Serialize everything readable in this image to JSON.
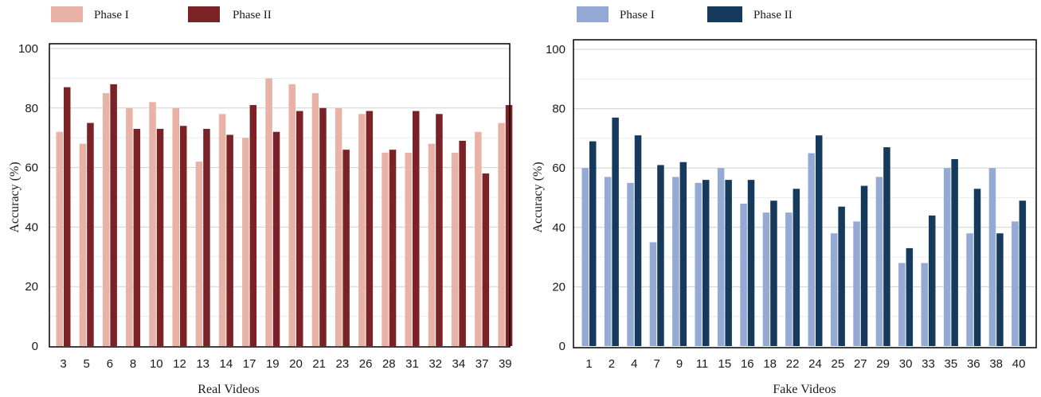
{
  "chart_data": [
    {
      "type": "bar",
      "title": "",
      "xlabel": "Real Videos",
      "ylabel": "Accuracy (%)",
      "ylim": [
        0,
        100
      ],
      "yticks": [
        0,
        20,
        40,
        60,
        80,
        100
      ],
      "grid": true,
      "legend_position": "top-left",
      "categories": [
        "3",
        "5",
        "6",
        "8",
        "10",
        "12",
        "13",
        "14",
        "17",
        "19",
        "20",
        "21",
        "23",
        "26",
        "28",
        "31",
        "32",
        "34",
        "37",
        "39"
      ],
      "series": [
        {
          "name": "Phase I",
          "color": "#e9b2a6",
          "values": [
            72,
            68,
            85,
            80,
            82,
            80,
            62,
            78,
            70,
            90,
            88,
            85,
            80,
            78,
            65,
            65,
            68,
            65,
            72,
            75
          ]
        },
        {
          "name": "Phase II",
          "color": "#7b2226",
          "values": [
            87,
            75,
            88,
            73,
            73,
            74,
            73,
            71,
            81,
            72,
            79,
            80,
            66,
            79,
            66,
            79,
            78,
            69,
            58,
            81
          ]
        }
      ]
    },
    {
      "type": "bar",
      "title": "",
      "xlabel": "Fake Videos",
      "ylabel": "Accuracy (%)",
      "ylim": [
        0,
        100
      ],
      "yticks": [
        0,
        20,
        40,
        60,
        80,
        100
      ],
      "grid": true,
      "legend_position": "top-left",
      "categories": [
        "1",
        "2",
        "4",
        "7",
        "9",
        "11",
        "15",
        "16",
        "18",
        "22",
        "24",
        "25",
        "27",
        "29",
        "30",
        "33",
        "35",
        "36",
        "38",
        "40"
      ],
      "series": [
        {
          "name": "Phase I",
          "color": "#94a9d3",
          "values": [
            60,
            57,
            55,
            35,
            57,
            55,
            60,
            48,
            45,
            45,
            65,
            38,
            42,
            57,
            28,
            28,
            60,
            38,
            60,
            42
          ]
        },
        {
          "name": "Phase II",
          "color": "#153a5c",
          "values": [
            69,
            77,
            71,
            61,
            62,
            56,
            56,
            56,
            49,
            53,
            71,
            47,
            54,
            67,
            33,
            44,
            63,
            53,
            38,
            49
          ]
        }
      ]
    }
  ]
}
